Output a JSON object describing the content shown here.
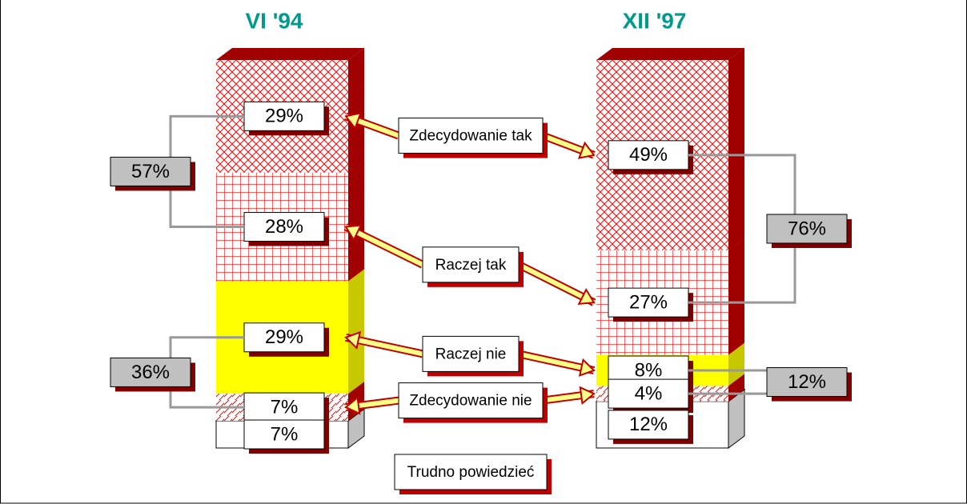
{
  "chart_data": {
    "type": "bar",
    "stacked": true,
    "categories": [
      "VI '94",
      "XII '97"
    ],
    "series": [
      {
        "name": "Zdecydowanie tak",
        "color": "#ff0000",
        "values": [
          29,
          49
        ],
        "value_labels": [
          "29%",
          "49%"
        ]
      },
      {
        "name": "Raczej tak",
        "color": "#ff0000",
        "values": [
          28,
          27
        ],
        "value_labels": [
          "28%",
          "27%"
        ]
      },
      {
        "name": "Raczej nie",
        "color": "#ffff00",
        "values": [
          29,
          8
        ],
        "value_labels": [
          "29%",
          "8%"
        ]
      },
      {
        "name": "Zdecydowanie nie",
        "color": "#ff0000",
        "values": [
          7,
          4
        ],
        "value_labels": [
          "7%",
          "4%"
        ]
      },
      {
        "name": "Trudno powiedzieć",
        "color": "#ffffff",
        "values": [
          7,
          12
        ],
        "value_labels": [
          "7%",
          "12%"
        ]
      }
    ],
    "annotations": [
      {
        "value": 57,
        "label": "57%"
      },
      {
        "value": 36,
        "label": "36%"
      },
      {
        "value": 76,
        "label": "76%"
      },
      {
        "value": 12,
        "label": "12%"
      }
    ]
  }
}
